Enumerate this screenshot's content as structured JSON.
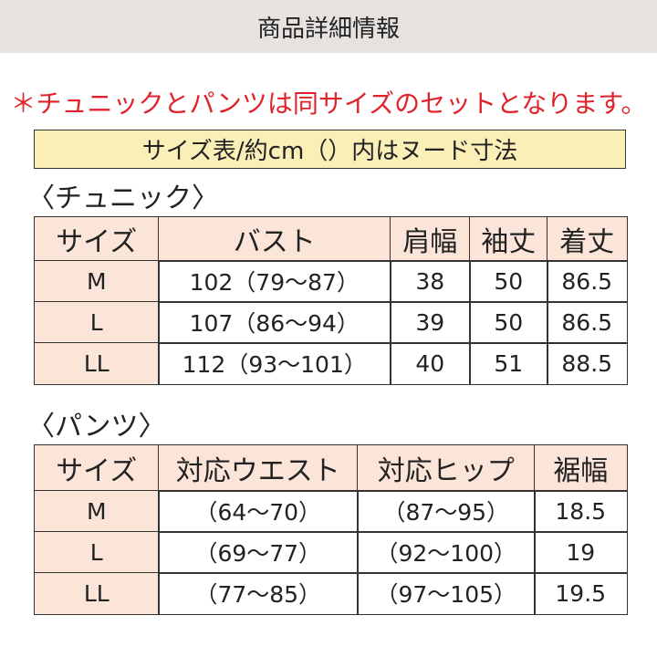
{
  "header": {
    "title": "商品詳細情報"
  },
  "notice": "＊チュニックとパンツは同サイズのセットとなります。",
  "caption": "サイズ表/約cm（）内はヌード寸法",
  "tunic": {
    "heading": "〈チュニック〉",
    "headers": [
      "サイズ",
      "バスト",
      "肩幅",
      "袖丈",
      "着丈"
    ],
    "rows": [
      [
        "M",
        "102（79〜87）",
        "38",
        "50",
        "86.5"
      ],
      [
        "L",
        "107（86〜94）",
        "39",
        "50",
        "86.5"
      ],
      [
        "LL",
        "112（93〜101）",
        "40",
        "51",
        "88.5"
      ]
    ]
  },
  "pants": {
    "heading": "〈パンツ〉",
    "headers": [
      "サイズ",
      "対応ウエスト",
      "対応ヒップ",
      "裾幅"
    ],
    "rows": [
      [
        "M",
        "（64〜70）",
        "（87〜95）",
        "18.5"
      ],
      [
        "L",
        "（69〜77）",
        "（92〜100）",
        "19"
      ],
      [
        "LL",
        "（77〜85）",
        "（97〜105）",
        "19.5"
      ]
    ]
  }
}
